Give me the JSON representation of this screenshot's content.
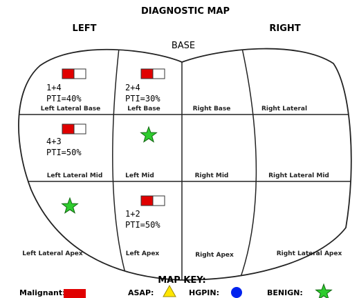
{
  "title": "DIAGNOSTIC MAP",
  "left_label": "LEFT",
  "right_label": "RIGHT",
  "base_label": "BASE",
  "zones": [
    {
      "label": "Left Lateral Base",
      "score": "1+4",
      "pti": "PTI=40%"
    },
    {
      "label": "Left Base",
      "score": "2+4",
      "pti": "PTI=30%"
    },
    {
      "label": "Right Base"
    },
    {
      "label": "Right Lateral"
    },
    {
      "label": "Left Lateral Mid",
      "score": "4+3",
      "pti": "PTI=50%"
    },
    {
      "label": "Left Mid"
    },
    {
      "label": "Right Mid"
    },
    {
      "label": "Right Lateral Mid"
    },
    {
      "label": "Left Lateral Apex"
    },
    {
      "label": "Left Apex",
      "score": "1+2",
      "pti": "PTI=50%"
    },
    {
      "label": "Right Apex"
    },
    {
      "label": "Right Lateral Apex"
    }
  ],
  "key": {
    "title": "MAP KEY:",
    "items": [
      "Malignant:",
      "ASAP:",
      "HGPIN:",
      "BENIGN:"
    ]
  }
}
